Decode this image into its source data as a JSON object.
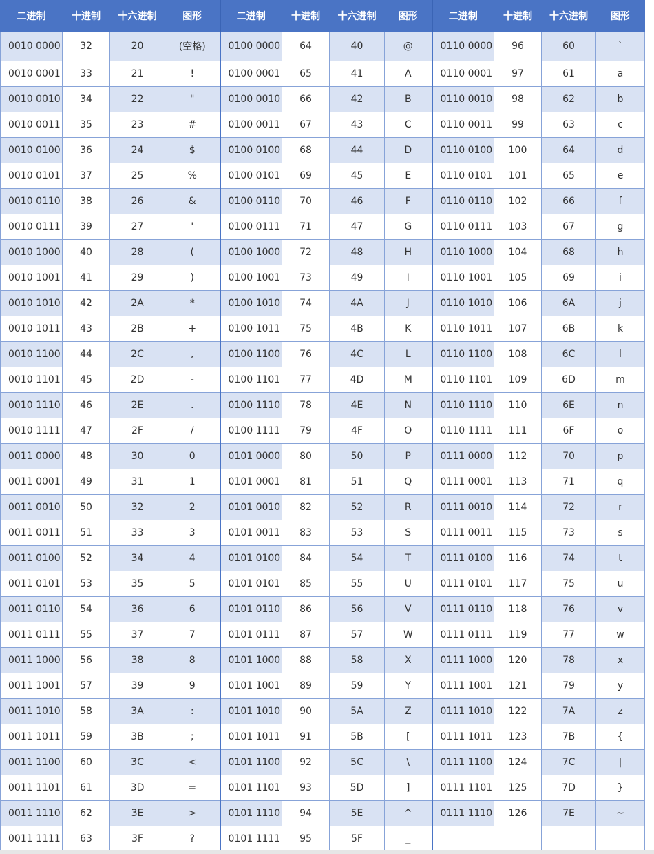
{
  "headers": [
    "二进制",
    "十进制",
    "十六进制",
    "图形",
    "二进制",
    "十进制",
    "十六进制",
    "图形",
    "二进制",
    "十进制",
    "十六进制",
    "图形"
  ],
  "rows": [
    [
      "0010 0000",
      "32",
      "20",
      "(空格)",
      "0100 0000",
      "64",
      "40",
      "@",
      "0110 0000",
      "96",
      "60",
      "`"
    ],
    [
      "0010 0001",
      "33",
      "21",
      "!",
      "0100 0001",
      "65",
      "41",
      "A",
      "0110 0001",
      "97",
      "61",
      "a"
    ],
    [
      "0010 0010",
      "34",
      "22",
      "\"",
      "0100 0010",
      "66",
      "42",
      "B",
      "0110 0010",
      "98",
      "62",
      "b"
    ],
    [
      "0010 0011",
      "35",
      "23",
      "#",
      "0100 0011",
      "67",
      "43",
      "C",
      "0110 0011",
      "99",
      "63",
      "c"
    ],
    [
      "0010 0100",
      "36",
      "24",
      "$",
      "0100 0100",
      "68",
      "44",
      "D",
      "0110 0100",
      "100",
      "64",
      "d"
    ],
    [
      "0010 0101",
      "37",
      "25",
      "%",
      "0100 0101",
      "69",
      "45",
      "E",
      "0110 0101",
      "101",
      "65",
      "e"
    ],
    [
      "0010 0110",
      "38",
      "26",
      "&",
      "0100 0110",
      "70",
      "46",
      "F",
      "0110 0110",
      "102",
      "66",
      "f"
    ],
    [
      "0010 0111",
      "39",
      "27",
      "'",
      "0100 0111",
      "71",
      "47",
      "G",
      "0110 0111",
      "103",
      "67",
      "g"
    ],
    [
      "0010 1000",
      "40",
      "28",
      "(",
      "0100 1000",
      "72",
      "48",
      "H",
      "0110 1000",
      "104",
      "68",
      "h"
    ],
    [
      "0010 1001",
      "41",
      "29",
      ")",
      "0100 1001",
      "73",
      "49",
      "I",
      "0110 1001",
      "105",
      "69",
      "i"
    ],
    [
      "0010 1010",
      "42",
      "2A",
      "*",
      "0100 1010",
      "74",
      "4A",
      "J",
      "0110 1010",
      "106",
      "6A",
      "j"
    ],
    [
      "0010 1011",
      "43",
      "2B",
      "+",
      "0100 1011",
      "75",
      "4B",
      "K",
      "0110 1011",
      "107",
      "6B",
      "k"
    ],
    [
      "0010 1100",
      "44",
      "2C",
      ",",
      "0100 1100",
      "76",
      "4C",
      "L",
      "0110 1100",
      "108",
      "6C",
      "l"
    ],
    [
      "0010 1101",
      "45",
      "2D",
      "-",
      "0100 1101",
      "77",
      "4D",
      "M",
      "0110 1101",
      "109",
      "6D",
      "m"
    ],
    [
      "0010 1110",
      "46",
      "2E",
      ".",
      "0100 1110",
      "78",
      "4E",
      "N",
      "0110 1110",
      "110",
      "6E",
      "n"
    ],
    [
      "0010 1111",
      "47",
      "2F",
      "/",
      "0100 1111",
      "79",
      "4F",
      "O",
      "0110 1111",
      "111",
      "6F",
      "o"
    ],
    [
      "0011 0000",
      "48",
      "30",
      "0",
      "0101 0000",
      "80",
      "50",
      "P",
      "0111 0000",
      "112",
      "70",
      "p"
    ],
    [
      "0011 0001",
      "49",
      "31",
      "1",
      "0101 0001",
      "81",
      "51",
      "Q",
      "0111 0001",
      "113",
      "71",
      "q"
    ],
    [
      "0011 0010",
      "50",
      "32",
      "2",
      "0101 0010",
      "82",
      "52",
      "R",
      "0111 0010",
      "114",
      "72",
      "r"
    ],
    [
      "0011 0011",
      "51",
      "33",
      "3",
      "0101 0011",
      "83",
      "53",
      "S",
      "0111 0011",
      "115",
      "73",
      "s"
    ],
    [
      "0011 0100",
      "52",
      "34",
      "4",
      "0101 0100",
      "84",
      "54",
      "T",
      "0111 0100",
      "116",
      "74",
      "t"
    ],
    [
      "0011 0101",
      "53",
      "35",
      "5",
      "0101 0101",
      "85",
      "55",
      "U",
      "0111 0101",
      "117",
      "75",
      "u"
    ],
    [
      "0011 0110",
      "54",
      "36",
      "6",
      "0101 0110",
      "86",
      "56",
      "V",
      "0111 0110",
      "118",
      "76",
      "v"
    ],
    [
      "0011 0111",
      "55",
      "37",
      "7",
      "0101 0111",
      "87",
      "57",
      "W",
      "0111 0111",
      "119",
      "77",
      "w"
    ],
    [
      "0011 1000",
      "56",
      "38",
      "8",
      "0101 1000",
      "88",
      "58",
      "X",
      "0111 1000",
      "120",
      "78",
      "x"
    ],
    [
      "0011 1001",
      "57",
      "39",
      "9",
      "0101 1001",
      "89",
      "59",
      "Y",
      "0111 1001",
      "121",
      "79",
      "y"
    ],
    [
      "0011 1010",
      "58",
      "3A",
      ":",
      "0101 1010",
      "90",
      "5A",
      "Z",
      "0111 1010",
      "122",
      "7A",
      "z"
    ],
    [
      "0011 1011",
      "59",
      "3B",
      ";",
      "0101 1011",
      "91",
      "5B",
      "[",
      "0111 1011",
      "123",
      "7B",
      "{"
    ],
    [
      "0011 1100",
      "60",
      "3C",
      "<",
      "0101 1100",
      "92",
      "5C",
      "\\",
      "0111 1100",
      "124",
      "7C",
      "|"
    ],
    [
      "0011 1101",
      "61",
      "3D",
      "=",
      "0101 1101",
      "93",
      "5D",
      "]",
      "0111 1101",
      "125",
      "7D",
      "}"
    ],
    [
      "0011 1110",
      "62",
      "3E",
      ">",
      "0101 1110",
      "94",
      "5E",
      "^",
      "0111 1110",
      "126",
      "7E",
      "~"
    ],
    [
      "0011 1111",
      "63",
      "3F",
      "?",
      "0101 1111",
      "95",
      "5F",
      "_",
      "",
      "",
      "",
      ""
    ]
  ]
}
